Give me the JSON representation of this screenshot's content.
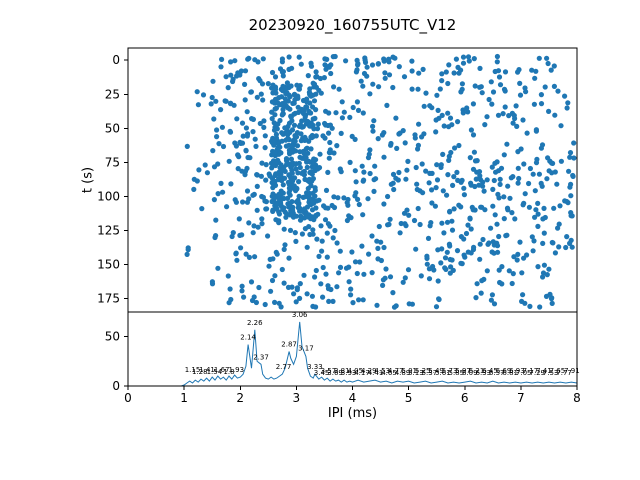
{
  "title": "20230920_160755UTC_V12",
  "chart_data": [
    {
      "type": "scatter",
      "title": "20230920_160755UTC_V12",
      "xlabel": "",
      "ylabel": "t (s)",
      "xlim": [
        0,
        8
      ],
      "ylim": [
        -9,
        185
      ],
      "y_axis_inverted": true,
      "xticks": [
        0,
        1,
        2,
        3,
        4,
        5,
        6,
        7,
        8
      ],
      "yticks": [
        0,
        25,
        50,
        75,
        100,
        125,
        150,
        175
      ],
      "marker_color": "#1f77b4",
      "seed": 7,
      "clusters": [
        {
          "count": 320,
          "x": [
            2.55,
            3.35
          ],
          "t": [
            18,
            118
          ]
        },
        {
          "count": 90,
          "x": [
            1.6,
            7.8
          ],
          "t": [
            -3,
            10
          ]
        },
        {
          "count": 260,
          "x": [
            1.5,
            7.95
          ],
          "t": [
            72,
            118
          ]
        },
        {
          "count": 270,
          "x": [
            1.5,
            7.95
          ],
          "t": [
            118,
            182
          ]
        },
        {
          "count": 140,
          "x": [
            1.5,
            3.6
          ],
          "t": [
            10,
            72
          ]
        },
        {
          "count": 80,
          "x": [
            5.6,
            7.95
          ],
          "t": [
            12,
            72
          ]
        },
        {
          "count": 45,
          "x": [
            3.6,
            5.6
          ],
          "t": [
            35,
            72
          ]
        },
        {
          "count": 25,
          "x": [
            3.6,
            5.6
          ],
          "t": [
            10,
            35
          ]
        },
        {
          "count": 15,
          "x": [
            1.05,
            1.5
          ],
          "t": [
            20,
            170
          ]
        }
      ]
    },
    {
      "type": "line",
      "xlabel": "IPI (ms)",
      "ylabel": "",
      "xlim": [
        0,
        8
      ],
      "ylim": [
        0,
        75
      ],
      "xticks": [
        0,
        1,
        2,
        3,
        4,
        5,
        6,
        7,
        8
      ],
      "yticks": [
        0,
        50
      ],
      "line_color": "#1f77b4",
      "x": [
        0.0,
        0.95,
        1.0,
        1.05,
        1.1,
        1.15,
        1.2,
        1.25,
        1.3,
        1.35,
        1.4,
        1.45,
        1.5,
        1.55,
        1.6,
        1.65,
        1.7,
        1.75,
        1.8,
        1.85,
        1.9,
        1.95,
        2.0,
        2.05,
        2.1,
        2.14,
        2.2,
        2.26,
        2.3,
        2.37,
        2.4,
        2.45,
        2.5,
        2.55,
        2.6,
        2.65,
        2.7,
        2.75,
        2.8,
        2.87,
        2.9,
        2.95,
        3.0,
        3.06,
        3.1,
        3.17,
        3.2,
        3.25,
        3.3,
        3.33,
        3.4,
        3.45,
        3.5,
        3.55,
        3.6,
        3.65,
        3.7,
        3.75,
        3.8,
        3.85,
        3.9,
        3.95,
        4.0,
        4.1,
        4.2,
        4.3,
        4.4,
        4.5,
        4.6,
        4.7,
        4.8,
        4.9,
        5.0,
        5.1,
        5.2,
        5.3,
        5.4,
        5.5,
        5.6,
        5.7,
        5.8,
        5.9,
        6.0,
        6.1,
        6.2,
        6.3,
        6.4,
        6.5,
        6.6,
        6.7,
        6.8,
        6.9,
        7.0,
        7.1,
        7.2,
        7.3,
        7.4,
        7.5,
        7.6,
        7.7,
        7.8,
        7.9,
        8.0
      ],
      "y": [
        0,
        0,
        1,
        3,
        5,
        3,
        6,
        4,
        7,
        5,
        8,
        5,
        9,
        6,
        10,
        7,
        9,
        6,
        10,
        7,
        11,
        8,
        9,
        12,
        20,
        42,
        18,
        57,
        25,
        22,
        12,
        8,
        7,
        9,
        7,
        8,
        10,
        12,
        18,
        35,
        28,
        22,
        30,
        65,
        40,
        30,
        18,
        10,
        8,
        12,
        7,
        9,
        6,
        8,
        5,
        7,
        5,
        6,
        4,
        6,
        4,
        5,
        4,
        6,
        4,
        5,
        6,
        4,
        5,
        3,
        5,
        4,
        5,
        3,
        4,
        5,
        3,
        4,
        5,
        3,
        4,
        3,
        4,
        5,
        3,
        4,
        3,
        5,
        3,
        4,
        3,
        4,
        3,
        4,
        3,
        4,
        3,
        4,
        3,
        4,
        3,
        4,
        3
      ],
      "annotations": [
        {
          "x": 2.26,
          "y": 61,
          "label": "2.26"
        },
        {
          "x": 2.14,
          "y": 46,
          "label": "2.14"
        },
        {
          "x": 3.06,
          "y": 69,
          "label": "3.06"
        },
        {
          "x": 2.87,
          "y": 39,
          "label": "2.87"
        },
        {
          "x": 3.17,
          "y": 35,
          "label": "3.17"
        },
        {
          "x": 2.37,
          "y": 26,
          "label": "2.37"
        },
        {
          "x": 2.77,
          "y": 16,
          "label": "2.77"
        },
        {
          "x": 3.33,
          "y": 16,
          "label": "3.33"
        },
        {
          "x": 1.15,
          "y": 13,
          "label": "1.15"
        },
        {
          "x": 1.28,
          "y": 11,
          "label": "1.28"
        },
        {
          "x": 1.41,
          "y": 13,
          "label": "1.41"
        },
        {
          "x": 1.54,
          "y": 11,
          "label": "1.54"
        },
        {
          "x": 1.67,
          "y": 13,
          "label": "1.67"
        },
        {
          "x": 1.8,
          "y": 11,
          "label": "1.8"
        },
        {
          "x": 1.93,
          "y": 13,
          "label": "1.93"
        },
        {
          "x": 3.45,
          "y": 10,
          "label": "3.45"
        },
        {
          "x": 3.57,
          "y": 12,
          "label": "3.57"
        },
        {
          "x": 3.69,
          "y": 10,
          "label": "3.69"
        },
        {
          "x": 3.81,
          "y": 12,
          "label": "3.81"
        },
        {
          "x": 3.93,
          "y": 10,
          "label": "3.93"
        },
        {
          "x": 4.05,
          "y": 12,
          "label": "4.05"
        },
        {
          "x": 4.17,
          "y": 10,
          "label": "4.17"
        },
        {
          "x": 4.29,
          "y": 12,
          "label": "4.29"
        },
        {
          "x": 4.41,
          "y": 10,
          "label": "4.41"
        },
        {
          "x": 4.53,
          "y": 12,
          "label": "4.53"
        },
        {
          "x": 4.65,
          "y": 10,
          "label": "4.65"
        },
        {
          "x": 4.77,
          "y": 12,
          "label": "4.77"
        },
        {
          "x": 4.89,
          "y": 10,
          "label": "4.89"
        },
        {
          "x": 5.01,
          "y": 12,
          "label": "5.01"
        },
        {
          "x": 5.13,
          "y": 10,
          "label": "5.13"
        },
        {
          "x": 5.25,
          "y": 12,
          "label": "5.25"
        },
        {
          "x": 5.37,
          "y": 10,
          "label": "5.37"
        },
        {
          "x": 5.49,
          "y": 12,
          "label": "5.49"
        },
        {
          "x": 5.61,
          "y": 10,
          "label": "5.61"
        },
        {
          "x": 5.73,
          "y": 12,
          "label": "5.73"
        },
        {
          "x": 5.85,
          "y": 10,
          "label": "5.85"
        },
        {
          "x": 5.97,
          "y": 12,
          "label": "5.97"
        },
        {
          "x": 6.09,
          "y": 10,
          "label": "6.09"
        },
        {
          "x": 6.21,
          "y": 12,
          "label": "6.21"
        },
        {
          "x": 6.33,
          "y": 10,
          "label": "6.33"
        },
        {
          "x": 6.45,
          "y": 12,
          "label": "6.45"
        },
        {
          "x": 6.57,
          "y": 10,
          "label": "6.57"
        },
        {
          "x": 6.69,
          "y": 12,
          "label": "6.69"
        },
        {
          "x": 6.81,
          "y": 10,
          "label": "6.81"
        },
        {
          "x": 6.93,
          "y": 12,
          "label": "6.93"
        },
        {
          "x": 7.05,
          "y": 10,
          "label": "7.05"
        },
        {
          "x": 7.17,
          "y": 12,
          "label": "7.17"
        },
        {
          "x": 7.29,
          "y": 10,
          "label": "7.29"
        },
        {
          "x": 7.41,
          "y": 12,
          "label": "7.41"
        },
        {
          "x": 7.53,
          "y": 10,
          "label": "7.53"
        },
        {
          "x": 7.65,
          "y": 12,
          "label": "7.65"
        },
        {
          "x": 7.77,
          "y": 10,
          "label": "7.77"
        },
        {
          "x": 7.91,
          "y": 12,
          "label": "7.91"
        }
      ]
    }
  ]
}
